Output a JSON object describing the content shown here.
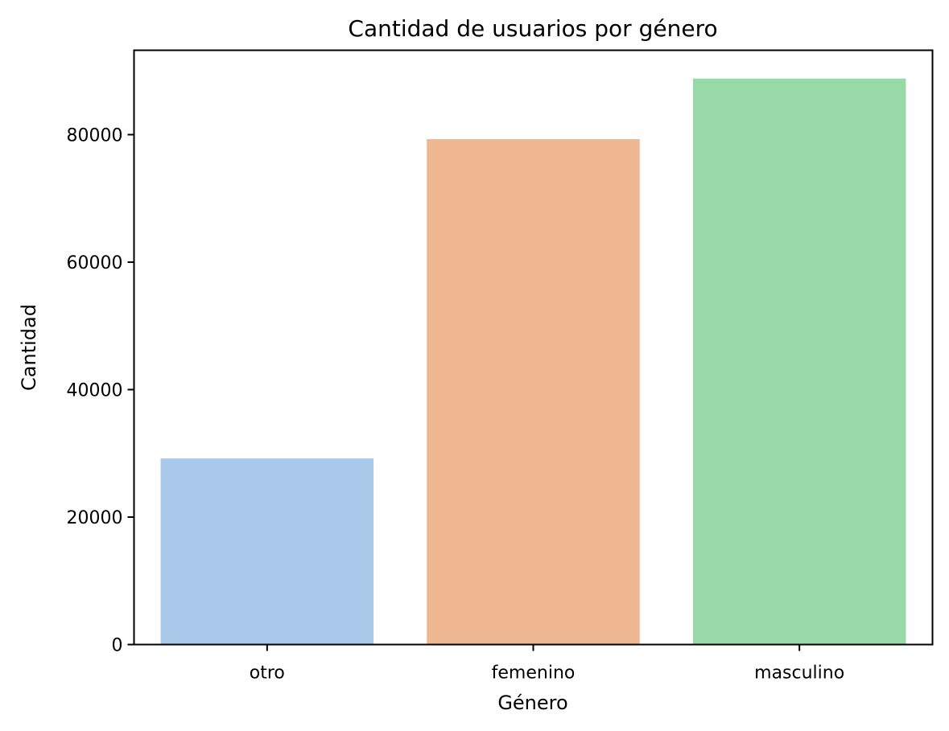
{
  "chart_data": {
    "type": "bar",
    "title": "Cantidad de usuarios por género",
    "xlabel": "Género",
    "ylabel": "Cantidad",
    "categories": [
      "otro",
      "femenino",
      "masculino"
    ],
    "values": [
      29200,
      79300,
      88800
    ],
    "colors": [
      "#abc9ea",
      "#efb792",
      "#98d9a8"
    ],
    "ylim": [
      0,
      93240
    ],
    "yticks": [
      0,
      20000,
      40000,
      60000,
      80000
    ],
    "grid": false,
    "legend": "none"
  }
}
